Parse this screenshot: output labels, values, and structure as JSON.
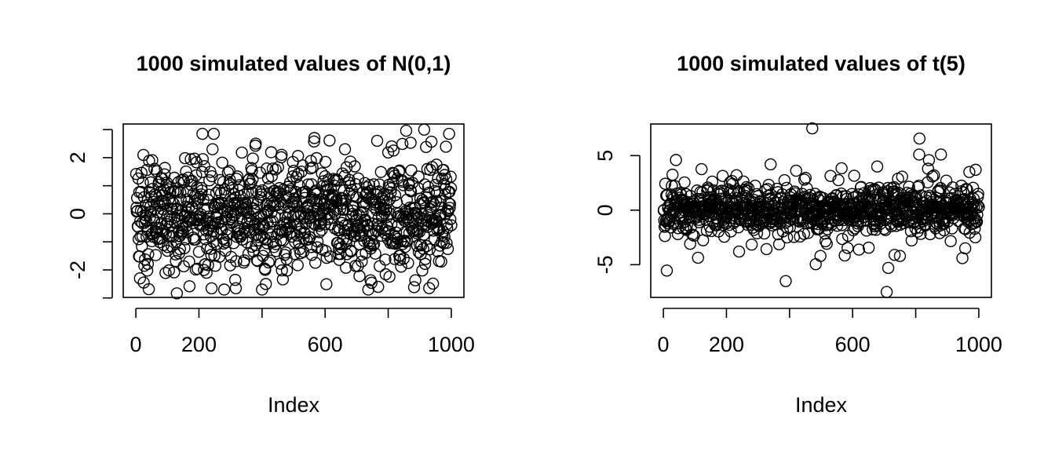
{
  "chart_data": [
    {
      "type": "scatter",
      "title": "1000 simulated values of N(0,1)",
      "xlabel": "Index",
      "ylabel": "",
      "xlim": [
        -40,
        1040
      ],
      "ylim": [
        -2.98,
        3.2
      ],
      "x_ticks": [
        0,
        200,
        400,
        600,
        800,
        1000
      ],
      "x_tick_labels": [
        "0",
        "200",
        "",
        "600",
        "",
        "1000"
      ],
      "y_ticks": [
        -3,
        -2,
        -1,
        0,
        1,
        2,
        3
      ],
      "y_tick_labels": [
        "",
        "-2",
        "",
        "0",
        "",
        "2",
        ""
      ],
      "grid": false,
      "n": 1000,
      "distribution": "N(0,1)",
      "values_preview": {
        "x": [
          13,
          25,
          59,
          211,
          217,
          243,
          247,
          280,
          380,
          400,
          462,
          525,
          566,
          663,
          737,
          765,
          811,
          914,
          930,
          993
        ],
        "y": [
          -2.3,
          -2.45,
          1.6,
          2.85,
          1.7,
          2.3,
          2.85,
          -2.7,
          2.5,
          -2.7,
          2.1,
          1.5,
          2.7,
          2.3,
          -2.7,
          2.6,
          2.4,
          3.0,
          -2.65,
          2.85
        ]
      }
    },
    {
      "type": "scatter",
      "title": "1000 simulated values of t(5)",
      "xlabel": "Index",
      "ylabel": "",
      "xlim": [
        -40,
        1040
      ],
      "ylim": [
        -8.0,
        7.9
      ],
      "x_ticks": [
        0,
        200,
        400,
        600,
        800,
        1000
      ],
      "x_tick_labels": [
        "0",
        "200",
        "",
        "600",
        "",
        "1000"
      ],
      "y_ticks": [
        -5,
        0,
        5
      ],
      "y_tick_labels": [
        "-5",
        "0",
        "5"
      ],
      "grid": false,
      "n": 1000,
      "distribution": "t(5)",
      "values_preview": {
        "x": [
          40,
          232,
          340,
          388,
          472,
          498,
          678,
          708,
          713,
          733,
          750,
          839,
          880,
          948,
          957,
          970,
          990
        ],
        "y": [
          4.6,
          3.2,
          4.2,
          -6.5,
          7.5,
          -4.2,
          4.0,
          -7.5,
          -5.3,
          -4.1,
          -4.2,
          3.8,
          5.1,
          -4.4,
          -3.5,
          3.5,
          3.7
        ]
      }
    }
  ]
}
